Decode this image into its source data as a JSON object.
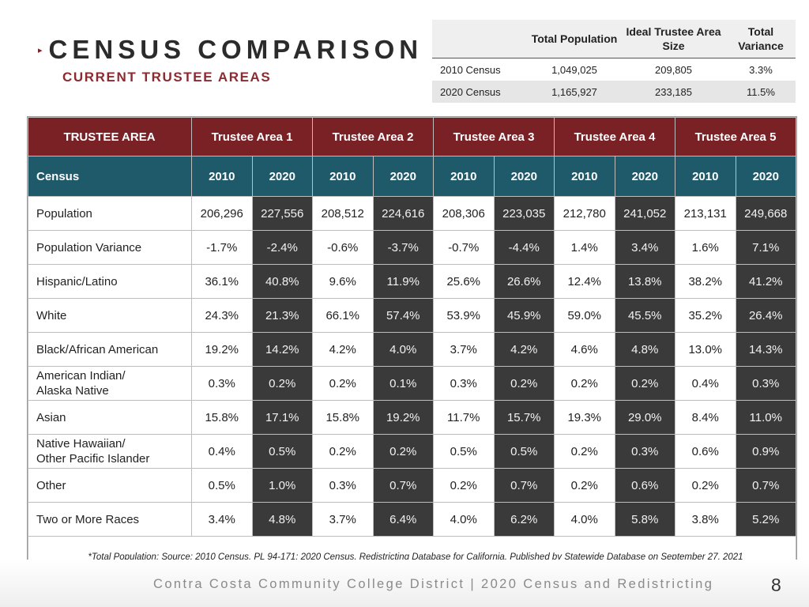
{
  "title": "CENSUS COMPARISON",
  "subtitle": "CURRENT TRUSTEE AREAS",
  "bullet_icon": "arrow-bullet-icon",
  "summary": {
    "headers": [
      "",
      "Total Population",
      "Ideal Trustee Area Size",
      "Total Variance"
    ],
    "rows": [
      {
        "label": "2010 Census",
        "population": "1,049,025",
        "ideal": "209,805",
        "variance": "3.3%"
      },
      {
        "label": "2020 Census",
        "population": "1,165,927",
        "ideal": "233,185",
        "variance": "11.5%"
      }
    ]
  },
  "table": {
    "corner": "TRUSTEE AREA",
    "census_label": "Census",
    "areas": [
      "Trustee Area 1",
      "Trustee Area 2",
      "Trustee Area 3",
      "Trustee Area 4",
      "Trustee Area 5"
    ],
    "years": [
      "2010",
      "2020"
    ],
    "rows": [
      {
        "label": "Population",
        "values": [
          "206,296",
          "227,556",
          "208,512",
          "224,616",
          "208,306",
          "223,035",
          "212,780",
          "241,052",
          "213,131",
          "249,668"
        ]
      },
      {
        "label": "Population Variance",
        "values": [
          "-1.7%",
          "-2.4%",
          "-0.6%",
          "-3.7%",
          "-0.7%",
          "-4.4%",
          "1.4%",
          "3.4%",
          "1.6%",
          "7.1%"
        ]
      },
      {
        "label": "Hispanic/Latino",
        "values": [
          "36.1%",
          "40.8%",
          "9.6%",
          "11.9%",
          "25.6%",
          "26.6%",
          "12.4%",
          "13.8%",
          "38.2%",
          "41.2%"
        ]
      },
      {
        "label": "White",
        "values": [
          "24.3%",
          "21.3%",
          "66.1%",
          "57.4%",
          "53.9%",
          "45.9%",
          "59.0%",
          "45.5%",
          "35.2%",
          "26.4%"
        ]
      },
      {
        "label": "Black/African American",
        "values": [
          "19.2%",
          "14.2%",
          "4.2%",
          "4.0%",
          "3.7%",
          "4.2%",
          "4.6%",
          "4.8%",
          "13.0%",
          "14.3%"
        ]
      },
      {
        "label_lines": [
          "American Indian/",
          "Alaska Native"
        ],
        "values": [
          "0.3%",
          "0.2%",
          "0.2%",
          "0.1%",
          "0.3%",
          "0.2%",
          "0.2%",
          "0.2%",
          "0.4%",
          "0.3%"
        ]
      },
      {
        "label": "Asian",
        "values": [
          "15.8%",
          "17.1%",
          "15.8%",
          "19.2%",
          "11.7%",
          "15.7%",
          "19.3%",
          "29.0%",
          "8.4%",
          "11.0%"
        ]
      },
      {
        "label_lines": [
          "Native Hawaiian/",
          "Other Pacific Islander"
        ],
        "values": [
          "0.4%",
          "0.5%",
          "0.2%",
          "0.2%",
          "0.5%",
          "0.5%",
          "0.2%",
          "0.3%",
          "0.6%",
          "0.9%"
        ]
      },
      {
        "label": "Other",
        "values": [
          "0.5%",
          "1.0%",
          "0.3%",
          "0.7%",
          "0.2%",
          "0.7%",
          "0.2%",
          "0.6%",
          "0.2%",
          "0.7%"
        ]
      },
      {
        "label": "Two or More Races",
        "values": [
          "3.4%",
          "4.8%",
          "3.7%",
          "6.4%",
          "4.0%",
          "6.2%",
          "4.0%",
          "5.8%",
          "3.8%",
          "5.2%"
        ]
      }
    ],
    "footnote": "*Total Population; Source: 2010 Census, PL 94-171; 2020 Census, Redistricting Database for California, Published by Statewide Database on September 27, 2021"
  },
  "footer": {
    "text": "Contra Costa Community College District | 2020 Census and Redistricting",
    "page": "8"
  },
  "colors": {
    "header_maroon": "#7a2126",
    "subheader_teal": "#1f5a6b",
    "dark_cell": "#3a3a3a",
    "subtitle_red": "#8b2a2f"
  }
}
